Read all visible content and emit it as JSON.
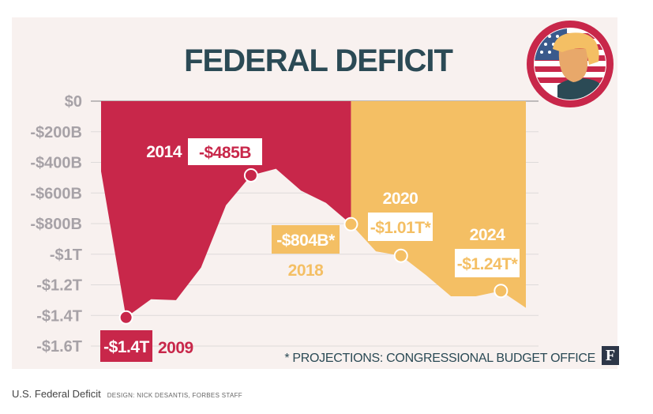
{
  "chart_data": {
    "type": "area",
    "title": "FEDERAL DEFICIT",
    "y_unit": "billions USD",
    "ylim": [
      -1600,
      0
    ],
    "y_ticks": [
      {
        "value": 0,
        "label": "$0"
      },
      {
        "value": -200,
        "label": "-$200B"
      },
      {
        "value": -400,
        "label": "-$400B"
      },
      {
        "value": -600,
        "label": "-$600B"
      },
      {
        "value": -800,
        "label": "-$800B"
      },
      {
        "value": -1000,
        "label": "-$1T"
      },
      {
        "value": -1200,
        "label": "-$1.2T"
      },
      {
        "value": -1400,
        "label": "-$1.4T"
      },
      {
        "value": -1600,
        "label": "-$1.6T"
      }
    ],
    "xlim": [
      2008,
      2025
    ],
    "series": [
      {
        "name": "Actual",
        "color": "#c8274a",
        "points": [
          {
            "x": 2008,
            "y": -459
          },
          {
            "x": 2009,
            "y": -1413
          },
          {
            "x": 2010,
            "y": -1294
          },
          {
            "x": 2011,
            "y": -1300
          },
          {
            "x": 2012,
            "y": -1087
          },
          {
            "x": 2013,
            "y": -680
          },
          {
            "x": 2014,
            "y": -485
          },
          {
            "x": 2015,
            "y": -442
          },
          {
            "x": 2016,
            "y": -585
          },
          {
            "x": 2017,
            "y": -665
          },
          {
            "x": 2018,
            "y": -804
          }
        ]
      },
      {
        "name": "Projected",
        "color": "#f4bf64",
        "points": [
          {
            "x": 2018,
            "y": -804
          },
          {
            "x": 2019,
            "y": -981
          },
          {
            "x": 2020,
            "y": -1010
          },
          {
            "x": 2021,
            "y": -1136
          },
          {
            "x": 2022,
            "y": -1275
          },
          {
            "x": 2023,
            "y": -1275
          },
          {
            "x": 2024,
            "y": -1240
          },
          {
            "x": 2025,
            "y": -1350
          }
        ]
      }
    ],
    "annotations": [
      {
        "x": 2009,
        "y": -1413,
        "value_label": "-$1.4T",
        "year_label": "2009",
        "style": "red"
      },
      {
        "x": 2014,
        "y": -485,
        "value_label": "-$485B",
        "year_label": "2014",
        "style": "red"
      },
      {
        "x": 2018,
        "y": -804,
        "value_label": "-$804B*",
        "year_label": "2018",
        "style": "gold"
      },
      {
        "x": 2020,
        "y": -1010,
        "value_label": "-$1.01T*",
        "year_label": "2020",
        "style": "gold"
      },
      {
        "x": 2024,
        "y": -1240,
        "value_label": "-$1.24T*",
        "year_label": "2024",
        "style": "gold"
      }
    ],
    "footnote": "* PROJECTIONS: CONGRESSIONAL BUDGET OFFICE"
  },
  "colors": {
    "actual": "#c8274a",
    "projected": "#f4bf64",
    "title": "#2b4a55",
    "axis": "#a7a2a7",
    "background": "#f8f1ef"
  },
  "logo_letter": "F",
  "caption": {
    "title": "U.S. Federal Deficit",
    "credit": "DESIGN: NICK DESANTIS, FORBES STAFF"
  },
  "icons": {
    "badge": "trump-portrait-flag-icon"
  }
}
